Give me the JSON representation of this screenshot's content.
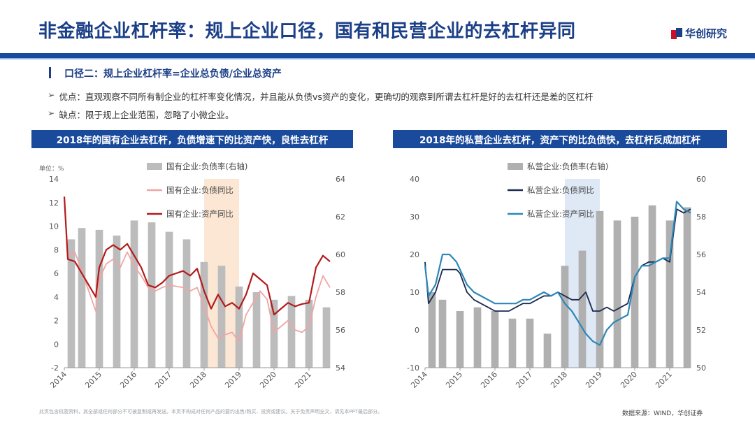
{
  "header": {
    "title": "非金融企业杠杆率：规上企业口径，国有和民营企业的去杠杆异同",
    "logo_text": "华创研究",
    "brand_color": "#1b3f87",
    "rule_color": "#1a4a9c"
  },
  "section": {
    "heading": "口径二：规上企业杠杆率=企业总负债/企业总资产",
    "bullets": [
      {
        "arrow": "➢",
        "text": "优点：直观观察不同所有制企业的杠杆率变化情况，并且能从负债vs资产的变化，更确切的观察到所谓去杠杆是好的去杠杆还是差的区杠杆"
      },
      {
        "arrow": "➢",
        "text": "缺点：限于规上企业范围，忽略了小微企业。"
      }
    ]
  },
  "footer": {
    "disclaimer": "此页包含机密资料，其全部或任何部分不可被复制或再发送。本页不构成对任何产品的要约出售/购买、投资或建议。关于免责声明全文，请见本PPT最后部分。",
    "source": "数据来源：WIND，华创证券"
  },
  "chart_data": [
    {
      "type": "bar+line",
      "title": "2018年的国有企业去杠杆，负债增速下的比资产快，良性去杠杆",
      "unit_label": "单位：%",
      "x_ticks": [
        "2014",
        "2015",
        "2016",
        "2017",
        "2018",
        "2019",
        "2020",
        "2021"
      ],
      "x_range": [
        2014.0,
        2021.6
      ],
      "ylim_left": [
        -2,
        14
      ],
      "yticks_left": [
        -2,
        0,
        2,
        4,
        6,
        8,
        10,
        12,
        14
      ],
      "ylim_right": [
        54,
        64
      ],
      "yticks_right": [
        54,
        56,
        58,
        60,
        62,
        64
      ],
      "highlight": {
        "range": [
          2018.0,
          2019.0
        ],
        "color": "#fbe3cc"
      },
      "legend_position": "top-left",
      "bar_series": {
        "name": "国有企业:负债率(右轴)",
        "axis": "right",
        "color": "#bcbcbc",
        "x": [
          2014.2,
          2014.5,
          2015.0,
          2015.5,
          2016.0,
          2016.5,
          2017.0,
          2017.5,
          2018.0,
          2018.5,
          2019.0,
          2019.5,
          2020.0,
          2020.5,
          2021.0,
          2021.5
        ],
        "values": [
          60.8,
          61.4,
          61.3,
          61.0,
          61.8,
          61.7,
          61.2,
          60.8,
          59.6,
          59.4,
          58.3,
          58.0,
          57.6,
          57.8,
          57.6,
          57.2
        ]
      },
      "line_series": [
        {
          "name": "国有企业:负债同比",
          "axis": "left",
          "color": "#f0a5a5",
          "x": [
            2014.0,
            2014.1,
            2014.3,
            2014.5,
            2014.7,
            2014.9,
            2015.0,
            2015.2,
            2015.4,
            2015.6,
            2015.8,
            2016.0,
            2016.2,
            2016.4,
            2016.6,
            2016.8,
            2017.0,
            2017.2,
            2017.4,
            2017.6,
            2017.8,
            2018.0,
            2018.2,
            2018.4,
            2018.6,
            2018.8,
            2019.0,
            2019.2,
            2019.4,
            2019.6,
            2019.8,
            2020.0,
            2020.2,
            2020.4,
            2020.6,
            2020.8,
            2021.0,
            2021.2,
            2021.4,
            2021.6
          ],
          "values": [
            12.2,
            7.5,
            7.8,
            6.2,
            4.5,
            2.8,
            5.5,
            6.8,
            7.2,
            6.5,
            7.8,
            6.6,
            5.8,
            4.8,
            4.5,
            4.8,
            5.0,
            4.9,
            4.8,
            4.5,
            4.8,
            3.2,
            1.5,
            0.5,
            0.8,
            1.0,
            0.2,
            2.5,
            3.5,
            4.5,
            3.8,
            1.0,
            1.5,
            2.0,
            1.2,
            1.0,
            1.5,
            4.0,
            5.8,
            4.8
          ]
        },
        {
          "name": "国有企业:资产同比",
          "axis": "left",
          "color": "#b31b1b",
          "x": [
            2014.0,
            2014.1,
            2014.3,
            2014.5,
            2014.7,
            2014.9,
            2015.0,
            2015.2,
            2015.4,
            2015.6,
            2015.8,
            2016.0,
            2016.2,
            2016.4,
            2016.6,
            2016.8,
            2017.0,
            2017.2,
            2017.4,
            2017.6,
            2017.8,
            2018.0,
            2018.2,
            2018.4,
            2018.6,
            2018.8,
            2019.0,
            2019.2,
            2019.4,
            2019.6,
            2019.8,
            2020.0,
            2020.2,
            2020.4,
            2020.6,
            2020.8,
            2021.0,
            2021.2,
            2021.4,
            2021.6
          ],
          "values": [
            12.5,
            7.2,
            7.0,
            6.0,
            5.0,
            4.0,
            6.5,
            8.0,
            8.4,
            8.0,
            8.5,
            7.5,
            6.5,
            5.0,
            4.8,
            5.2,
            5.8,
            6.0,
            6.2,
            5.8,
            6.4,
            4.5,
            3.0,
            4.2,
            3.2,
            3.5,
            3.0,
            4.2,
            6.0,
            5.5,
            5.0,
            2.5,
            3.0,
            3.5,
            3.2,
            3.4,
            3.5,
            6.5,
            7.5,
            7.0
          ]
        }
      ]
    },
    {
      "type": "bar+line",
      "title": "2018年的私营企业去杠杆，资产下的比负债快，去杠杆反成加杠杆",
      "x_ticks": [
        "2014",
        "2015",
        "2016",
        "2017",
        "2018",
        "2019",
        "2020",
        "2021"
      ],
      "x_range": [
        2014.0,
        2021.6
      ],
      "ylim_left": [
        -10,
        40
      ],
      "yticks_left": [
        -10,
        0,
        10,
        20,
        30,
        40
      ],
      "ylim_right": [
        50,
        60
      ],
      "yticks_right": [
        50,
        52,
        54,
        56,
        58,
        60
      ],
      "highlight": {
        "range": [
          2018.0,
          2019.0
        ],
        "color": "#d9e5f5"
      },
      "legend_position": "top-left",
      "bar_series": {
        "name": "私营企业:负债率(右轴)",
        "axis": "right",
        "color": "#b0b0b0",
        "x": [
          2014.2,
          2014.5,
          2015.0,
          2015.5,
          2016.0,
          2016.5,
          2017.0,
          2017.5,
          2018.0,
          2018.5,
          2019.0,
          2019.5,
          2020.0,
          2020.5,
          2021.0,
          2021.5
        ],
        "values": [
          54.0,
          53.6,
          53.0,
          53.2,
          53.0,
          52.6,
          52.6,
          51.8,
          55.4,
          56.2,
          58.3,
          57.8,
          58.0,
          58.6,
          57.8,
          58.5
        ]
      },
      "line_series": [
        {
          "name": "私营企业:负债同比",
          "axis": "left",
          "color": "#1b2a4e",
          "x": [
            2014.0,
            2014.1,
            2014.3,
            2014.5,
            2014.7,
            2014.9,
            2015.0,
            2015.2,
            2015.4,
            2015.6,
            2015.8,
            2016.0,
            2016.2,
            2016.4,
            2016.6,
            2016.8,
            2017.0,
            2017.2,
            2017.4,
            2017.6,
            2017.8,
            2018.0,
            2018.2,
            2018.4,
            2018.6,
            2018.8,
            2019.0,
            2019.2,
            2019.4,
            2019.6,
            2019.8,
            2020.0,
            2020.2,
            2020.4,
            2020.6,
            2020.8,
            2021.0,
            2021.2,
            2021.4,
            2021.6
          ],
          "values": [
            18,
            7,
            10,
            16,
            16,
            16,
            15,
            10,
            8,
            7,
            6,
            5,
            5,
            5,
            6,
            7,
            7,
            8,
            9,
            9,
            10,
            9,
            8,
            8,
            10,
            5,
            5,
            6,
            5,
            6,
            7,
            14,
            17,
            18,
            18,
            19,
            18,
            32,
            31,
            32
          ]
        },
        {
          "name": "私营企业:资产同比",
          "axis": "left",
          "color": "#2d87b8",
          "x": [
            2014.0,
            2014.1,
            2014.3,
            2014.5,
            2014.7,
            2014.9,
            2015.0,
            2015.2,
            2015.4,
            2015.6,
            2015.8,
            2016.0,
            2016.2,
            2016.4,
            2016.6,
            2016.8,
            2017.0,
            2017.2,
            2017.4,
            2017.6,
            2017.8,
            2018.0,
            2018.2,
            2018.4,
            2018.6,
            2018.8,
            2019.0,
            2019.2,
            2019.4,
            2019.6,
            2019.8,
            2020.0,
            2020.2,
            2020.4,
            2020.6,
            2020.8,
            2021.0,
            2021.2,
            2021.4,
            2021.6
          ],
          "values": [
            17,
            9,
            12,
            20,
            20,
            18,
            16,
            12,
            10,
            9,
            8,
            7,
            7,
            7,
            7,
            8,
            8,
            9,
            10,
            9,
            10,
            7,
            5,
            2,
            -1,
            -3,
            -4,
            0,
            2,
            3,
            4,
            14,
            17,
            17,
            18,
            19,
            19,
            34,
            32,
            31
          ]
        }
      ]
    }
  ]
}
